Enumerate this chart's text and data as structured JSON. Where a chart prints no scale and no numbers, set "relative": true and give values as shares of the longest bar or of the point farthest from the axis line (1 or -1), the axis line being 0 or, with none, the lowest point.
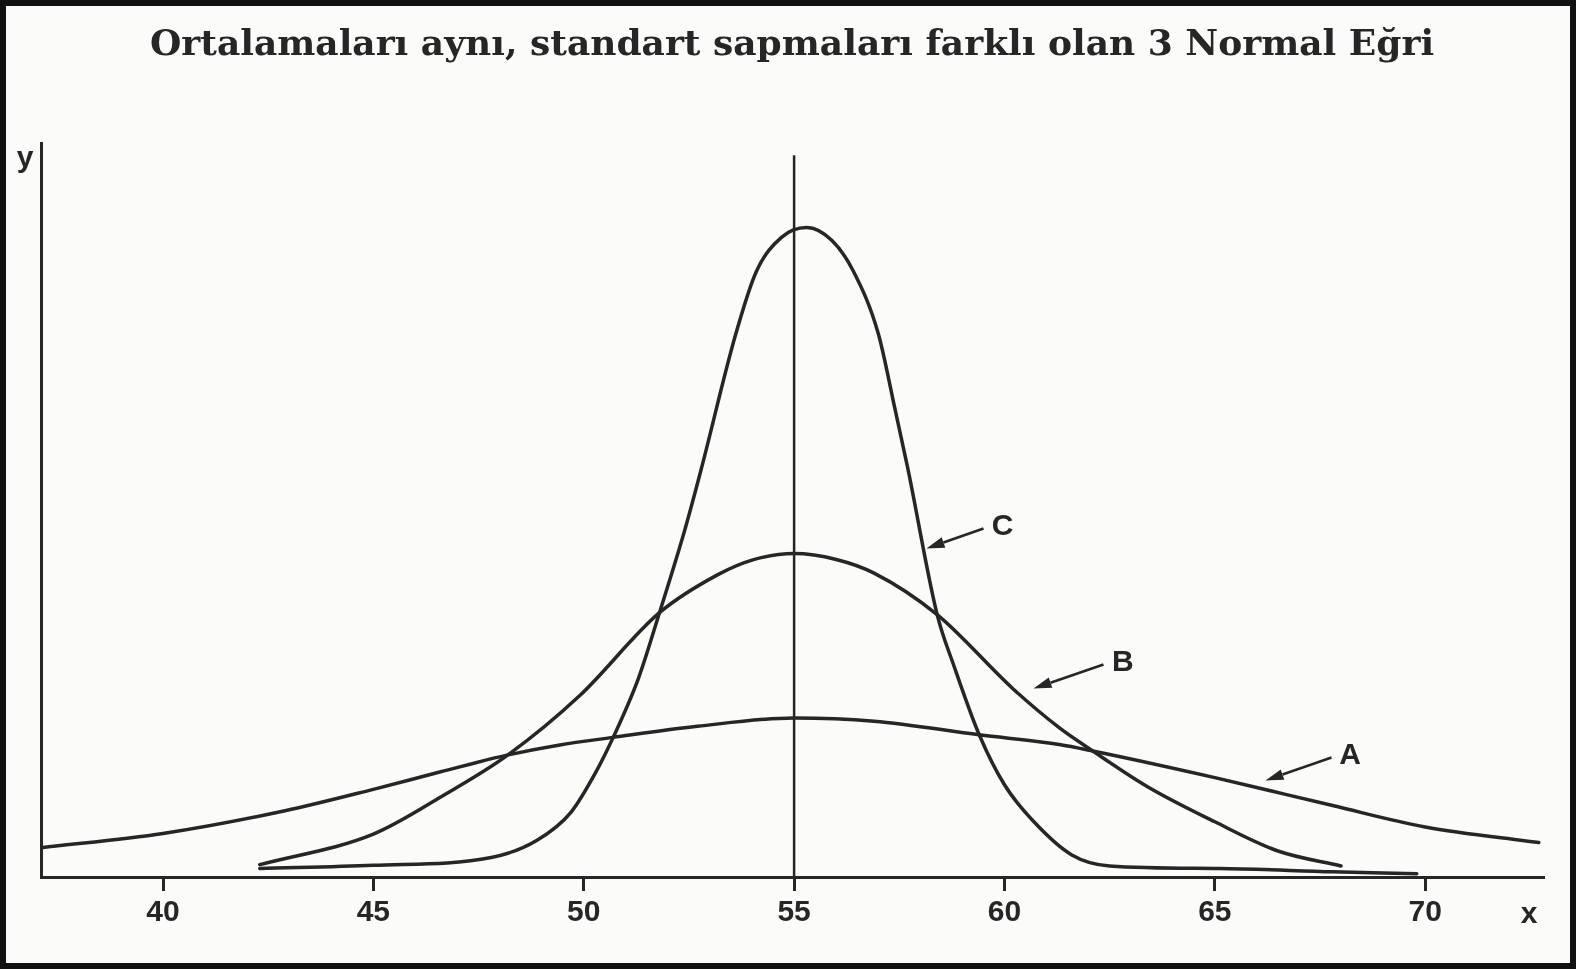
{
  "chart_data": {
    "type": "line",
    "title": "Ortalamaları aynı, standart sapmaları farklı olan 3 Normal Eğri",
    "xlabel": "x",
    "ylabel": "y",
    "relative": true,
    "xlim": [
      37.1,
      72.8
    ],
    "xticks": [
      40,
      45,
      50,
      55,
      60,
      65,
      70
    ],
    "marker": "none",
    "line_style": "solid",
    "legend": "right",
    "ref_lines": [
      {
        "axis": "x",
        "value": 55,
        "color": "#262626"
      }
    ],
    "series": [
      {
        "name": "A",
        "color": "#262626",
        "x": [
          37.1,
          40,
          42.9,
          45,
          46.6,
          48.2,
          49.4,
          50.7,
          52.7,
          55,
          56.9,
          59.4,
          61.3,
          62.1,
          65,
          67.8,
          70,
          72.7
        ],
        "values": [
          0.045,
          0.067,
          0.102,
          0.135,
          0.162,
          0.188,
          0.203,
          0.215,
          0.232,
          0.245,
          0.24,
          0.219,
          0.204,
          0.194,
          0.153,
          0.11,
          0.077,
          0.053
        ]
      },
      {
        "name": "B",
        "color": "#262626",
        "x": [
          42.3,
          45,
          46.7,
          48.2,
          49.9,
          51.8,
          53.2,
          54,
          55,
          56,
          56.9,
          58.4,
          60.2,
          61.3,
          62.1,
          63.4,
          65,
          66.5,
          68
        ],
        "values": [
          0.019,
          0.066,
          0.127,
          0.188,
          0.279,
          0.407,
          0.466,
          0.488,
          0.498,
          0.489,
          0.468,
          0.404,
          0.29,
          0.23,
          0.194,
          0.139,
          0.085,
          0.04,
          0.017
        ]
      },
      {
        "name": "C",
        "color": "#262626",
        "x": [
          42.3,
          45,
          47.8,
          48.9,
          49.7,
          50.3,
          50.7,
          51.3,
          51.8,
          52.4,
          52.8,
          53.6,
          54.1,
          54.7,
          55.3,
          55.9,
          56.4,
          57,
          57.4,
          57.7,
          58.4,
          58.8,
          59.4,
          60,
          60.7,
          61.6,
          62.5,
          65.1,
          67.8,
          69.8
        ],
        "values": [
          0.013,
          0.018,
          0.03,
          0.057,
          0.1,
          0.163,
          0.215,
          0.306,
          0.407,
          0.534,
          0.63,
          0.833,
          0.932,
          0.985,
          1,
          0.98,
          0.934,
          0.837,
          0.72,
          0.63,
          0.404,
          0.325,
          0.219,
          0.142,
          0.085,
          0.034,
          0.017,
          0.013,
          0.008,
          0.005
        ]
      }
    ]
  }
}
